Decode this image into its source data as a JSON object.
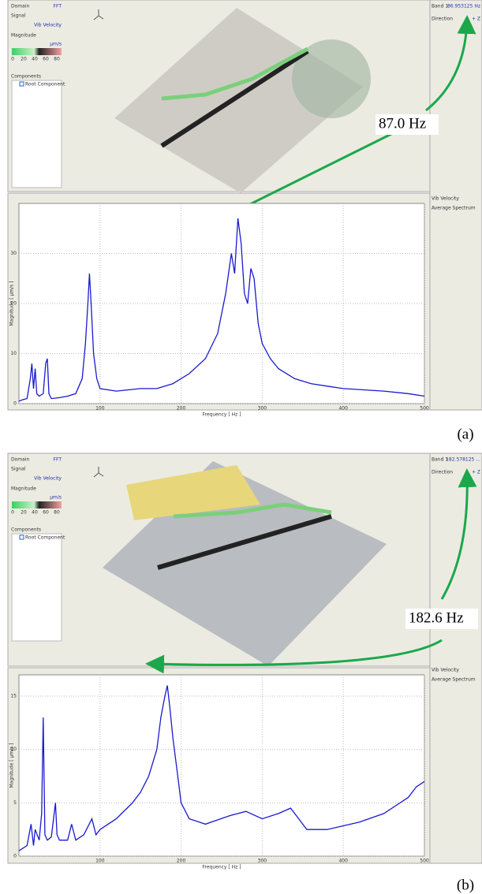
{
  "panels": [
    {
      "caption": "(a)",
      "sidebar": {
        "domain_label": "Domain",
        "domain": "FFT",
        "signal_label": "Signal",
        "signal": "Vib Velocity",
        "magnitude_label": "Magnitude",
        "unit": "µm/s",
        "scale_ticks": [
          0,
          20,
          40,
          60,
          80
        ],
        "components_label": "Components",
        "component": "Root Component"
      },
      "band": {
        "label": "Band 1",
        "value": "86.953125 Hz",
        "direction_label": "Direction",
        "direction": "+ Z"
      },
      "legend": [
        "Vib Velocity",
        "Average Spectrum"
      ],
      "annotation": "87.0 Hz"
    },
    {
      "caption": "(b)",
      "sidebar": {
        "domain_label": "Domain",
        "domain": "FFT",
        "signal_label": "Signal",
        "signal": "Vib Velocity",
        "magnitude_label": "Magnitude",
        "unit": "µm/s",
        "scale_ticks": [
          0,
          20,
          40,
          60,
          80
        ],
        "components_label": "Components",
        "component": "Root Component"
      },
      "band": {
        "label": "Band 1",
        "value": "182.578125 ...",
        "direction_label": "Direction",
        "direction": "+ Z"
      },
      "legend": [
        "Vib Velocity",
        "Average Spectrum"
      ],
      "annotation": "182.6 Hz"
    }
  ],
  "chart_data": [
    {
      "type": "line",
      "x_label": "Frequency [ Hz ]",
      "y_label": "Magnitude [ µm/s ]",
      "x": [
        0,
        5,
        10,
        14,
        16,
        18,
        20,
        22,
        25,
        30,
        33,
        35,
        37,
        40,
        50,
        60,
        70,
        78,
        82,
        85,
        87,
        89,
        92,
        96,
        100,
        120,
        150,
        170,
        190,
        210,
        230,
        245,
        255,
        262,
        266,
        270,
        274,
        278,
        282,
        286,
        290,
        295,
        300,
        310,
        320,
        330,
        340,
        360,
        380,
        400,
        450,
        480,
        500
      ],
      "series": [
        {
          "color": "#1a1ad0",
          "values": [
            0.5,
            0.8,
            1,
            5,
            8,
            3,
            7,
            2,
            1.5,
            2,
            8,
            9,
            2,
            1,
            1.2,
            1.5,
            2,
            5,
            12,
            20,
            26,
            20,
            10,
            5,
            3,
            2.5,
            3,
            3,
            4,
            6,
            9,
            14,
            22,
            30,
            26,
            37,
            32,
            22,
            20,
            27,
            25,
            16,
            12,
            9,
            7,
            6,
            5,
            4,
            3.5,
            3,
            2.5,
            2,
            1.5
          ]
        }
      ],
      "xlim": [
        0,
        500
      ],
      "xticks": [
        100,
        200,
        300,
        400,
        500
      ],
      "ylim": [
        0,
        40
      ],
      "yticks": [
        0,
        10,
        20,
        30
      ],
      "grid": true
    },
    {
      "type": "line",
      "x_label": "Frequency [ Hz ]",
      "y_label": "Magnitude [ µm/s ]",
      "x": [
        0,
        10,
        15,
        18,
        20,
        25,
        28,
        30,
        32,
        35,
        40,
        45,
        47,
        50,
        60,
        65,
        70,
        80,
        90,
        95,
        100,
        120,
        140,
        150,
        160,
        170,
        175,
        180,
        183,
        186,
        190,
        195,
        200,
        210,
        230,
        260,
        280,
        300,
        320,
        335,
        345,
        355,
        380,
        420,
        450,
        480,
        490,
        500
      ],
      "series": [
        {
          "color": "#1a1ad0",
          "values": [
            0.5,
            1,
            3,
            1,
            2.5,
            1.5,
            4,
            13,
            2,
            1.5,
            1.8,
            5,
            2,
            1.5,
            1.5,
            3,
            1.5,
            2,
            3.5,
            2,
            2.5,
            3.5,
            5,
            6,
            7.5,
            10,
            13,
            15,
            16,
            14,
            11,
            8,
            5,
            3.5,
            3,
            3.8,
            4.2,
            3.5,
            4,
            4.5,
            3.5,
            2.5,
            2.5,
            3.2,
            4,
            5.5,
            6.5,
            7
          ]
        }
      ],
      "xlim": [
        0,
        500
      ],
      "xticks": [
        100,
        200,
        300,
        400,
        500
      ],
      "ylim": [
        0,
        17
      ],
      "yticks": [
        0,
        5,
        10,
        15
      ],
      "grid": true
    }
  ]
}
